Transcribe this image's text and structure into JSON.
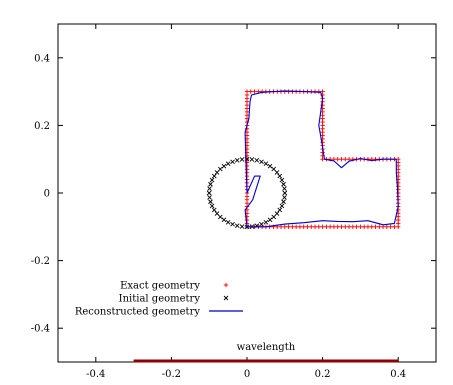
{
  "chart_data": {
    "type": "scatter",
    "title": "",
    "xlabel": "",
    "ylabel": "",
    "xlim": [
      -0.5,
      0.5
    ],
    "ylim": [
      -0.5,
      0.5
    ],
    "xticks": [
      -0.4,
      -0.2,
      0,
      0.2,
      0.4
    ],
    "yticks": [
      0.4,
      0.2,
      0,
      -0.2,
      -0.4
    ],
    "xtick_labels": [
      "-0.4",
      "-0.2",
      "0",
      "0.2",
      "0.4"
    ],
    "ytick_labels": [
      "0.4",
      "0.2",
      "0",
      "-0.2",
      "-0.4"
    ],
    "grid": false,
    "legend_position": "bottom-left",
    "series": [
      {
        "name": "Exact geometry",
        "kind": "points",
        "marker": "+",
        "color": "#ff0000",
        "polygon": [
          [
            0,
            0.3
          ],
          [
            0.2,
            0.3
          ],
          [
            0.2,
            0.1
          ],
          [
            0.4,
            0.1
          ],
          [
            0.4,
            -0.1
          ],
          [
            0,
            -0.1
          ]
        ],
        "spacing": 0.01
      },
      {
        "name": "Initial geometry",
        "kind": "points",
        "marker": "x",
        "color": "#000000",
        "circle": {
          "cx": 0,
          "cy": 0,
          "r": 0.1,
          "n": 48
        }
      },
      {
        "name": "Reconstructed geometry",
        "kind": "line",
        "color": "#0000cc",
        "points": [
          [
            0,
            -0.1
          ],
          [
            0.05,
            -0.1
          ],
          [
            0.1,
            -0.092
          ],
          [
            0.15,
            -0.088
          ],
          [
            0.2,
            -0.082
          ],
          [
            0.24,
            -0.084
          ],
          [
            0.28,
            -0.085
          ],
          [
            0.32,
            -0.082
          ],
          [
            0.36,
            -0.094
          ],
          [
            0.39,
            -0.09
          ],
          [
            0.4,
            -0.04
          ],
          [
            0.398,
            0.02
          ],
          [
            0.395,
            0.06
          ],
          [
            0.395,
            0.1
          ],
          [
            0.36,
            0.1
          ],
          [
            0.33,
            0.096
          ],
          [
            0.3,
            0.102
          ],
          [
            0.27,
            0.094
          ],
          [
            0.25,
            0.075
          ],
          [
            0.23,
            0.095
          ],
          [
            0.205,
            0.1
          ],
          [
            0.198,
            0.15
          ],
          [
            0.19,
            0.2
          ],
          [
            0.195,
            0.24
          ],
          [
            0.2,
            0.28
          ],
          [
            0.195,
            0.298
          ],
          [
            0.15,
            0.3
          ],
          [
            0.1,
            0.302
          ],
          [
            0.04,
            0.298
          ],
          [
            0.012,
            0.29
          ],
          [
            0.008,
            0.27
          ],
          [
            0.005,
            0.22
          ],
          [
            -0.005,
            0.18
          ],
          [
            -0.003,
            0.1
          ],
          [
            0,
            0
          ],
          [
            0.02,
            0.05
          ],
          [
            0.035,
            0.05
          ],
          [
            0.015,
            -0.02
          ],
          [
            -0.005,
            -0.05
          ],
          [
            0,
            -0.1
          ]
        ]
      }
    ],
    "annotations": [
      {
        "text": "wavelength",
        "from": -0.3,
        "to": 0.4,
        "y": -0.5,
        "color": "#8b0000"
      }
    ]
  }
}
